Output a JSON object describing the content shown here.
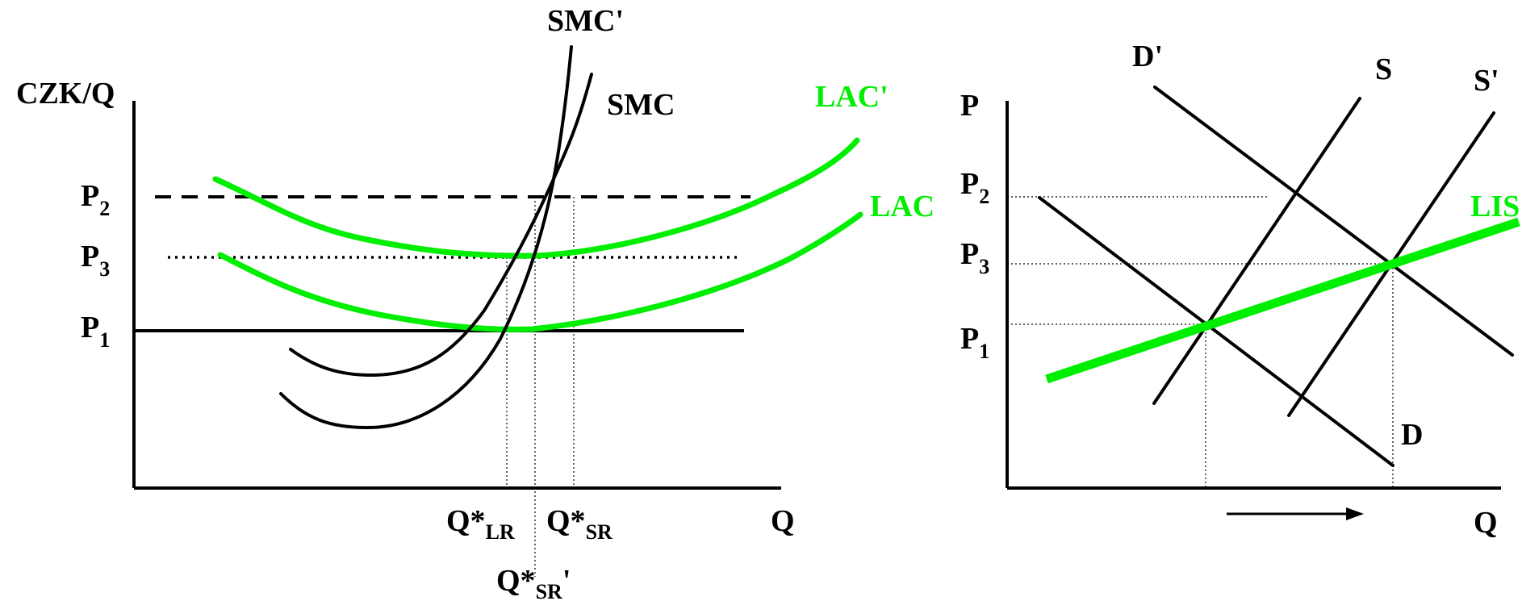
{
  "left": {
    "y_axis_label": "CZK/Q",
    "x_axis_label": "Q",
    "price_labels": {
      "p2": {
        "main": "P",
        "sub": "2"
      },
      "p3": {
        "main": "P",
        "sub": "3"
      },
      "p1": {
        "main": "P",
        "sub": "1"
      }
    },
    "curve_labels": {
      "smc_prime": "SMC'",
      "smc": "SMC",
      "lac_prime": "LAC'",
      "lac": "LAC"
    },
    "q_labels": {
      "q_lr": {
        "main": "Q*",
        "sub": "LR",
        "suffix": ""
      },
      "q_sr": {
        "main": "Q*",
        "sub": "SR",
        "suffix": ""
      },
      "q_sr_prime": {
        "main": "Q*",
        "sub": "SR",
        "suffix": "'"
      }
    }
  },
  "right": {
    "y_axis_label": "P",
    "x_axis_label": "Q",
    "price_labels": {
      "p2": {
        "main": "P",
        "sub": "2"
      },
      "p3": {
        "main": "P",
        "sub": "3"
      },
      "p1": {
        "main": "P",
        "sub": "1"
      }
    },
    "curve_labels": {
      "d_prime": "D'",
      "d": "D",
      "s": "S",
      "s_prime": "S'",
      "lis": "LIS"
    }
  },
  "colors": {
    "curve": "#000000",
    "lac": "#00ee00",
    "lis": "#00ee00"
  }
}
